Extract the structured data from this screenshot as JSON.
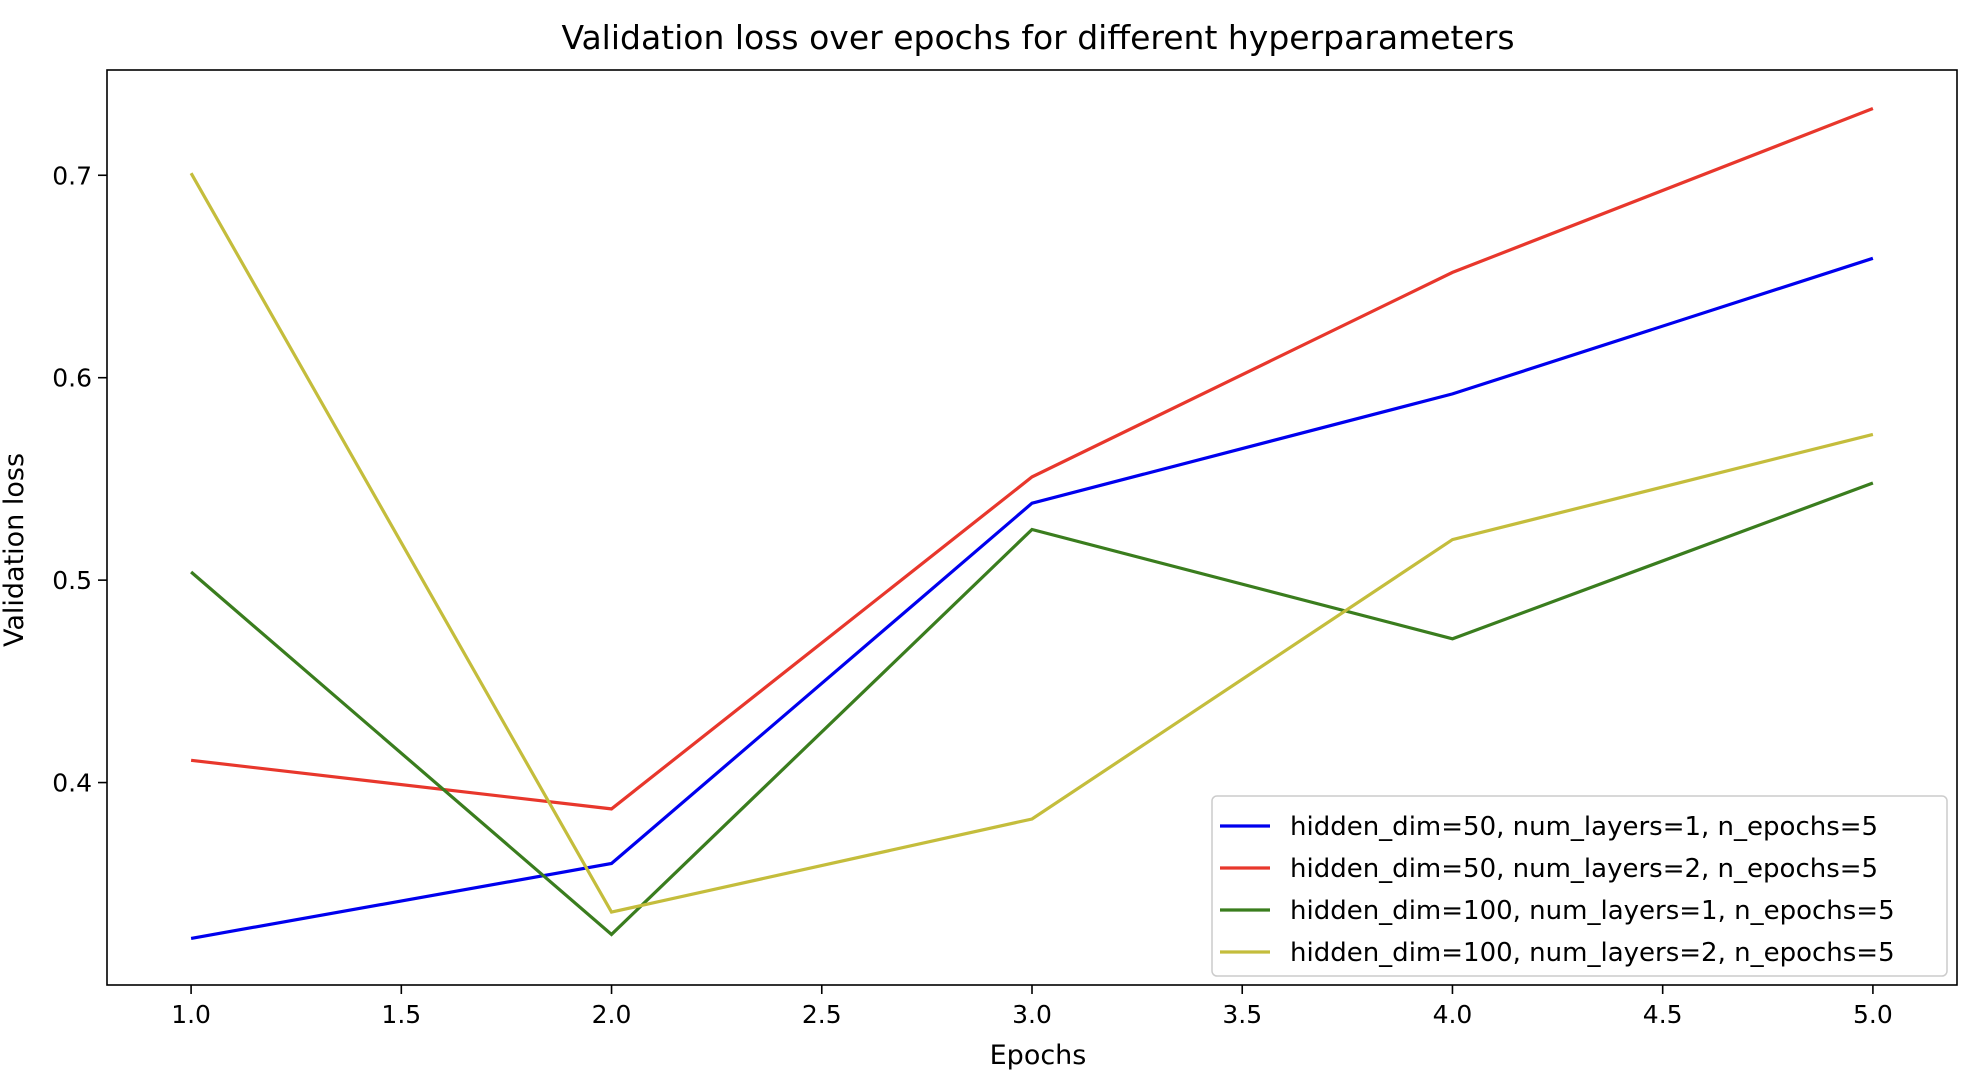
{
  "chart_data": {
    "type": "line",
    "title": "Validation loss over epochs for different hyperparameters",
    "xlabel": "Epochs",
    "ylabel": "Validation loss",
    "x": [
      1.0,
      2.0,
      3.0,
      4.0,
      5.0
    ],
    "xlim": [
      0.8,
      5.2
    ],
    "ylim": [
      0.3,
      0.752
    ],
    "xticks": [
      1.0,
      1.5,
      2.0,
      2.5,
      3.0,
      3.5,
      4.0,
      4.5,
      5.0
    ],
    "xtick_labels": [
      "1.0",
      "1.5",
      "2.0",
      "2.5",
      "3.0",
      "3.5",
      "4.0",
      "4.5",
      "5.0"
    ],
    "yticks": [
      0.4,
      0.5,
      0.6,
      0.7
    ],
    "ytick_labels": [
      "0.4",
      "0.5",
      "0.6",
      "0.7"
    ],
    "grid": false,
    "legend_position": "bottom-right",
    "series": [
      {
        "name": "hidden_dim=50, num_layers=1, n_epochs=5",
        "color": "#0000ee",
        "values": [
          0.323,
          0.36,
          0.538,
          0.592,
          0.659
        ]
      },
      {
        "name": "hidden_dim=50, num_layers=2, n_epochs=5",
        "color": "#e8372c",
        "values": [
          0.411,
          0.387,
          0.551,
          0.652,
          0.733
        ]
      },
      {
        "name": "hidden_dim=100, num_layers=1, n_epochs=5",
        "color": "#3a7d1e",
        "values": [
          0.504,
          0.325,
          0.525,
          0.471,
          0.548
        ]
      },
      {
        "name": "hidden_dim=100, num_layers=2, n_epochs=5",
        "color": "#c4bd3c",
        "values": [
          0.701,
          0.336,
          0.382,
          0.52,
          0.572
        ]
      }
    ]
  }
}
